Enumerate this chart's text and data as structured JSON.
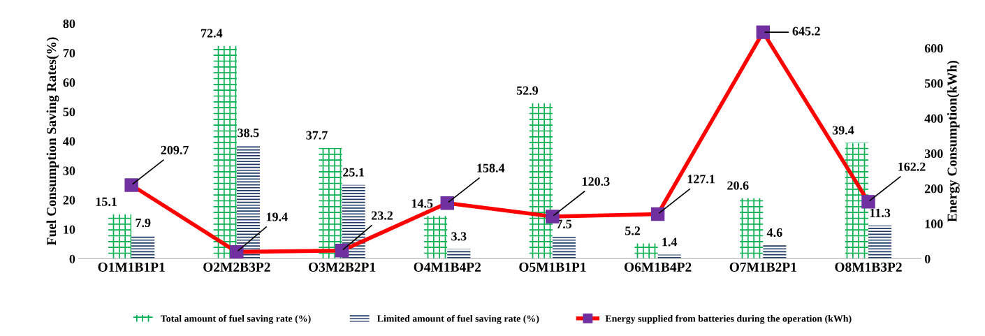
{
  "chart_data": {
    "type": "bar",
    "ylabel": "Fuel Consumption Saving Rates(%)",
    "y2label": "Energy Consumption(kWh)",
    "categories": [
      "O1M1B1P1",
      "O2M2B3P2",
      "O3M2B2P1",
      "O4M1B4P2",
      "O5M1B1P1",
      "O6M1B4P2",
      "O7M1B2P1",
      "O8M1B3P2"
    ],
    "series": [
      {
        "name": "Total amount of fuel saving rate (%)",
        "color": "#00b050",
        "values": [
          15.1,
          72.4,
          37.7,
          14.5,
          52.9,
          5.2,
          20.6,
          39.4
        ]
      },
      {
        "name": "Limited amount of fuel saving rate (%)",
        "color": "#1f3864",
        "values": [
          7.9,
          38.5,
          25.1,
          3.3,
          7.5,
          1.4,
          4.6,
          11.3
        ]
      },
      {
        "name": "Energy supplied from batteries during the operation (kWh)",
        "color": "#ff0000",
        "type": "line",
        "axis": "y2",
        "marker": "square",
        "values": [
          209.7,
          19.4,
          23.2,
          158.4,
          120.3,
          127.1,
          645.2,
          162.2
        ]
      }
    ],
    "ylim": [
      0,
      80
    ],
    "yticks": [
      0,
      10,
      20,
      30,
      40,
      50,
      60,
      70,
      80
    ],
    "y2lim": [
      0,
      670
    ],
    "y2ticks": [
      0,
      100,
      200,
      300,
      400,
      500,
      600
    ],
    "data_labels": true,
    "legend": "bottom",
    "grid": false
  }
}
